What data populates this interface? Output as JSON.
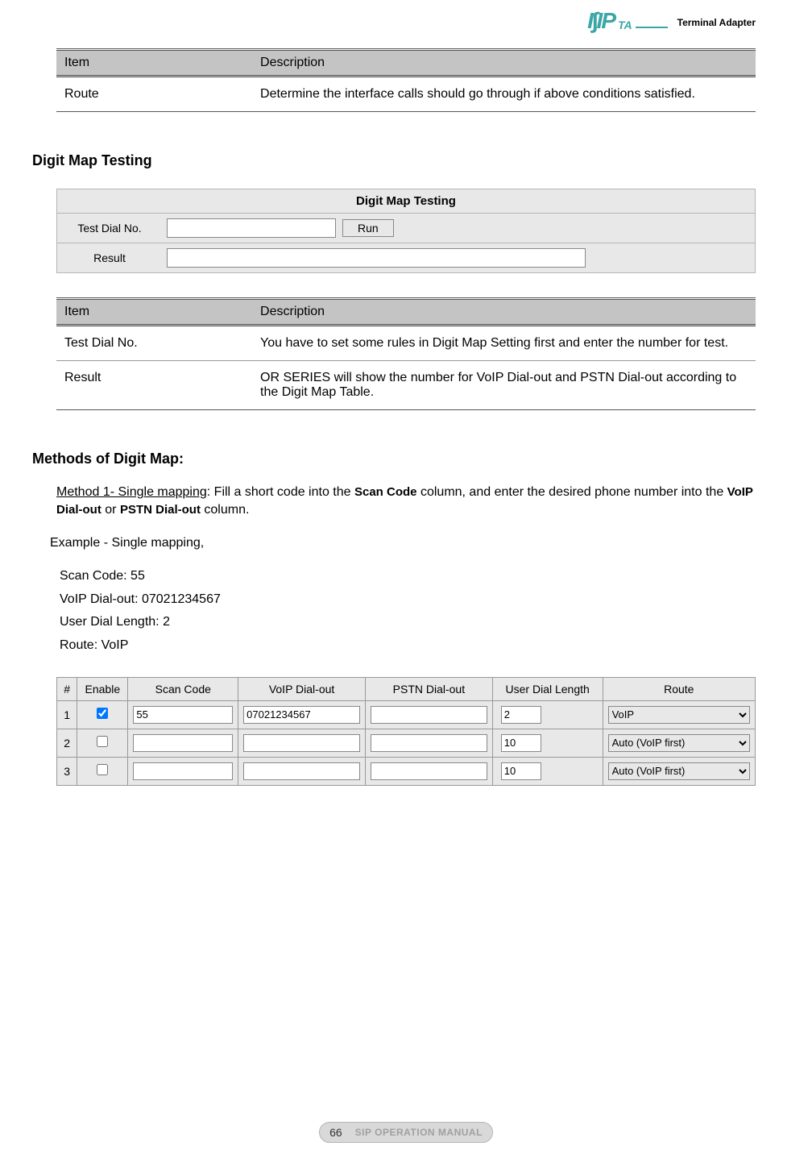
{
  "header": {
    "logo_label": "Terminal Adapter"
  },
  "table1": {
    "headers": [
      "Item",
      "Description"
    ],
    "rows": [
      {
        "item": "Route",
        "desc": "Determine the interface calls should go through if above conditions satisfied."
      }
    ]
  },
  "section1_heading": "Digit Map Testing",
  "ui_panel": {
    "title": "Digit Map Testing",
    "row1_label": "Test Dial No.",
    "row1_button": "Run",
    "row2_label": "Result"
  },
  "table2": {
    "headers": [
      "Item",
      "Description"
    ],
    "rows": [
      {
        "item": "Test Dial No.",
        "desc": "You have to set some rules in Digit Map Setting first and enter the number for test."
      },
      {
        "item": "Result",
        "desc": "OR SERIES will show the number for VoIP Dial-out and PSTN Dial-out according to the Digit Map Table."
      }
    ]
  },
  "section2_heading": "Methods of Digit Map:",
  "method_text": {
    "underline": "Method 1- Single mapping",
    "part1": ": Fill a short code into the ",
    "bold1": "Scan Code",
    "part2": " column, and enter the desired phone number into the ",
    "bold2": "VoIP Dial-out",
    "part3": " or ",
    "bold3": "PSTN Dial-out",
    "part4": " column."
  },
  "example_label": "Example - Single mapping,",
  "example_lines": {
    "l1": "Scan Code: 55",
    "l2": "VoIP Dial-out: 07021234567",
    "l3": "User Dial Length: 2",
    "l4": "Route: VoIP"
  },
  "config_table": {
    "headers": [
      "#",
      "Enable",
      "Scan Code",
      "VoIP Dial-out",
      "PSTN Dial-out",
      "User Dial Length",
      "Route"
    ],
    "rows": [
      {
        "num": "1",
        "enable": true,
        "scan": "55",
        "voip": "07021234567",
        "pstn": "",
        "len": "2",
        "route": "VoIP"
      },
      {
        "num": "2",
        "enable": false,
        "scan": "",
        "voip": "",
        "pstn": "",
        "len": "10",
        "route": "Auto (VoIP first)"
      },
      {
        "num": "3",
        "enable": false,
        "scan": "",
        "voip": "",
        "pstn": "",
        "len": "10",
        "route": "Auto (VoIP first)"
      }
    ]
  },
  "footer": {
    "page": "66",
    "title": "SIP OPERATION MANUAL"
  }
}
